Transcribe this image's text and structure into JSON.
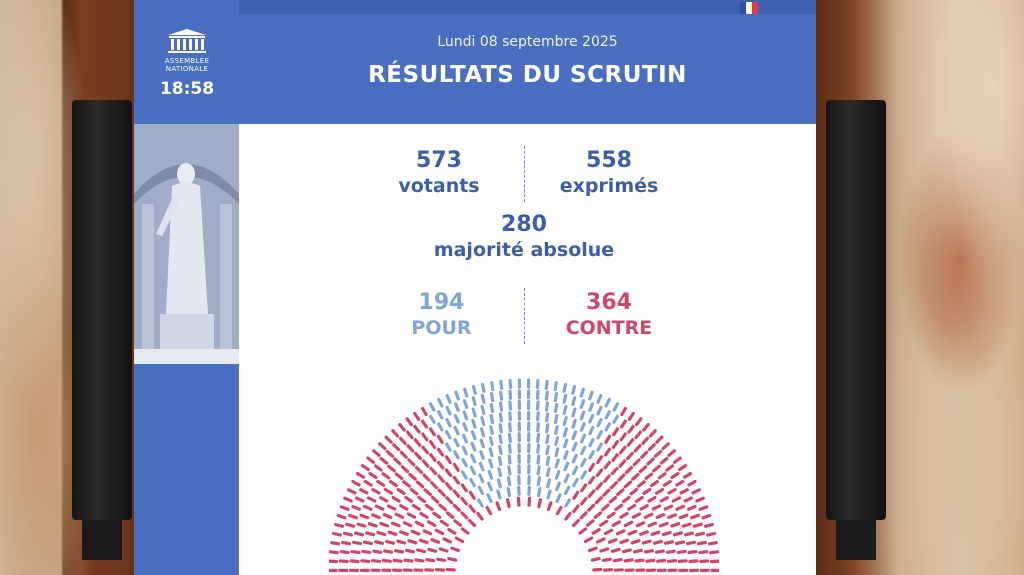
{
  "header": {
    "date": "Lundi 08 septembre 2025",
    "title": "RÉSULTATS DU SCRUTIN"
  },
  "logo": {
    "text_line1": "ASSEMBLÉE",
    "text_line2": "NATIONALE",
    "time": "18:58"
  },
  "results": {
    "votants": {
      "value": "573",
      "label": "votants"
    },
    "exprimes": {
      "value": "558",
      "label": "exprimés"
    },
    "majorite": {
      "value": "280",
      "label": "majorité absolue"
    },
    "pour": {
      "value": "194",
      "label": "POUR"
    },
    "contre": {
      "value": "364",
      "label": "CONTRE"
    }
  },
  "colors": {
    "brand_blue": "#4a6fc0",
    "text_blue": "#3c5da8",
    "pour": "#7ea5d6",
    "contre": "#d0466b",
    "flag_blue": "#2b4fa8",
    "flag_white": "#ffffff",
    "flag_red": "#e23b43"
  },
  "hemicycle": {
    "pour_seats": 194,
    "contre_seats": 364
  }
}
